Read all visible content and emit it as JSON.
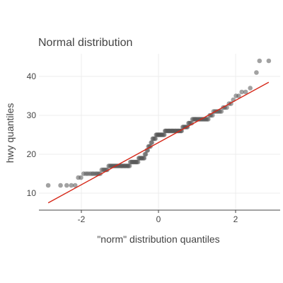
{
  "chart_data": {
    "type": "scatter",
    "title": "Normal distribution",
    "xlabel": "\"norm\" distribution quantiles",
    "ylabel": "hwy quantiles",
    "xlim": [
      -3.0,
      3.0
    ],
    "ylim": [
      6,
      46
    ],
    "xticks": [
      -2,
      0,
      2
    ],
    "yticks": [
      10,
      20,
      30,
      40
    ],
    "grid": true,
    "colors": {
      "points": "#555555",
      "reference_line": "#d62718",
      "grid": "#ececec",
      "axis": "#444444"
    },
    "series": [
      {
        "points": [
          [
            -2.86,
            12
          ],
          [
            -2.54,
            12
          ],
          [
            -2.38,
            12
          ],
          [
            -2.26,
            12
          ],
          [
            -2.16,
            12
          ],
          [
            -2.08,
            14
          ],
          [
            -2.01,
            14
          ],
          [
            -1.94,
            15
          ],
          [
            -1.88,
            15
          ],
          [
            -1.83,
            15
          ],
          [
            -1.77,
            15
          ],
          [
            -1.72,
            15
          ],
          [
            -1.68,
            15
          ],
          [
            -1.63,
            15
          ],
          [
            -1.59,
            15
          ],
          [
            -1.55,
            15
          ],
          [
            -1.51,
            15
          ],
          [
            -1.47,
            16
          ],
          [
            -1.43,
            16
          ],
          [
            -1.4,
            16
          ],
          [
            -1.36,
            16
          ],
          [
            -1.33,
            16
          ],
          [
            -1.29,
            17
          ],
          [
            -1.26,
            17
          ],
          [
            -1.23,
            17
          ],
          [
            -1.2,
            17
          ],
          [
            -1.17,
            17
          ],
          [
            -1.14,
            17
          ],
          [
            -1.11,
            17
          ],
          [
            -1.08,
            17
          ],
          [
            -1.05,
            17
          ],
          [
            -1.02,
            17
          ],
          [
            -0.99,
            17
          ],
          [
            -0.96,
            17
          ],
          [
            -0.94,
            17
          ],
          [
            -0.91,
            17
          ],
          [
            -0.88,
            17
          ],
          [
            -0.86,
            17
          ],
          [
            -0.83,
            17
          ],
          [
            -0.8,
            17
          ],
          [
            -0.78,
            17
          ],
          [
            -0.75,
            17
          ],
          [
            -0.73,
            18
          ],
          [
            -0.7,
            18
          ],
          [
            -0.68,
            18
          ],
          [
            -0.65,
            18
          ],
          [
            -0.63,
            18
          ],
          [
            -0.6,
            18
          ],
          [
            -0.58,
            18
          ],
          [
            -0.56,
            18
          ],
          [
            -0.53,
            18
          ],
          [
            -0.51,
            19
          ],
          [
            -0.49,
            19
          ],
          [
            -0.46,
            19
          ],
          [
            -0.44,
            19
          ],
          [
            -0.42,
            19
          ],
          [
            -0.39,
            19
          ],
          [
            -0.37,
            19
          ],
          [
            -0.35,
            20
          ],
          [
            -0.33,
            20
          ],
          [
            -0.3,
            21
          ],
          [
            -0.28,
            21
          ],
          [
            -0.26,
            22
          ],
          [
            -0.24,
            22
          ],
          [
            -0.21,
            22
          ],
          [
            -0.19,
            23
          ],
          [
            -0.17,
            23
          ],
          [
            -0.15,
            24
          ],
          [
            -0.13,
            24
          ],
          [
            -0.1,
            24
          ],
          [
            -0.08,
            24
          ],
          [
            -0.06,
            25
          ],
          [
            -0.04,
            25
          ],
          [
            -0.02,
            25
          ],
          [
            0.0,
            25
          ],
          [
            0.02,
            25
          ],
          [
            0.04,
            25
          ],
          [
            0.06,
            25
          ],
          [
            0.08,
            25
          ],
          [
            0.1,
            25
          ],
          [
            0.13,
            25
          ],
          [
            0.15,
            25
          ],
          [
            0.17,
            26
          ],
          [
            0.19,
            26
          ],
          [
            0.21,
            26
          ],
          [
            0.24,
            26
          ],
          [
            0.26,
            26
          ],
          [
            0.28,
            26
          ],
          [
            0.3,
            26
          ],
          [
            0.33,
            26
          ],
          [
            0.35,
            26
          ],
          [
            0.37,
            26
          ],
          [
            0.39,
            26
          ],
          [
            0.42,
            26
          ],
          [
            0.44,
            26
          ],
          [
            0.46,
            26
          ],
          [
            0.49,
            26
          ],
          [
            0.51,
            26
          ],
          [
            0.53,
            26
          ],
          [
            0.56,
            26
          ],
          [
            0.58,
            26
          ],
          [
            0.6,
            26
          ],
          [
            0.63,
            27
          ],
          [
            0.65,
            27
          ],
          [
            0.68,
            27
          ],
          [
            0.7,
            27
          ],
          [
            0.73,
            27
          ],
          [
            0.75,
            27
          ],
          [
            0.78,
            28
          ],
          [
            0.8,
            28
          ],
          [
            0.83,
            28
          ],
          [
            0.86,
            28
          ],
          [
            0.88,
            29
          ],
          [
            0.91,
            29
          ],
          [
            0.94,
            29
          ],
          [
            0.96,
            29
          ],
          [
            0.99,
            29
          ],
          [
            1.02,
            29
          ],
          [
            1.05,
            29
          ],
          [
            1.08,
            29
          ],
          [
            1.11,
            29
          ],
          [
            1.14,
            29
          ],
          [
            1.17,
            29
          ],
          [
            1.2,
            29
          ],
          [
            1.23,
            29
          ],
          [
            1.26,
            29
          ],
          [
            1.29,
            29
          ],
          [
            1.33,
            30
          ],
          [
            1.36,
            30
          ],
          [
            1.4,
            30
          ],
          [
            1.43,
            31
          ],
          [
            1.47,
            31
          ],
          [
            1.51,
            31
          ],
          [
            1.55,
            31
          ],
          [
            1.59,
            31
          ],
          [
            1.63,
            31
          ],
          [
            1.68,
            32
          ],
          [
            1.72,
            32
          ],
          [
            1.77,
            32
          ],
          [
            1.83,
            33
          ],
          [
            1.88,
            33
          ],
          [
            1.94,
            34
          ],
          [
            2.01,
            35
          ],
          [
            2.08,
            35
          ],
          [
            2.16,
            36
          ],
          [
            2.26,
            36
          ],
          [
            2.38,
            37
          ],
          [
            2.54,
            41
          ],
          [
            2.62,
            44
          ],
          [
            2.86,
            44
          ]
        ]
      }
    ],
    "reference_line": {
      "from": [
        -2.86,
        7.5
      ],
      "to": [
        2.86,
        38.5
      ]
    }
  }
}
